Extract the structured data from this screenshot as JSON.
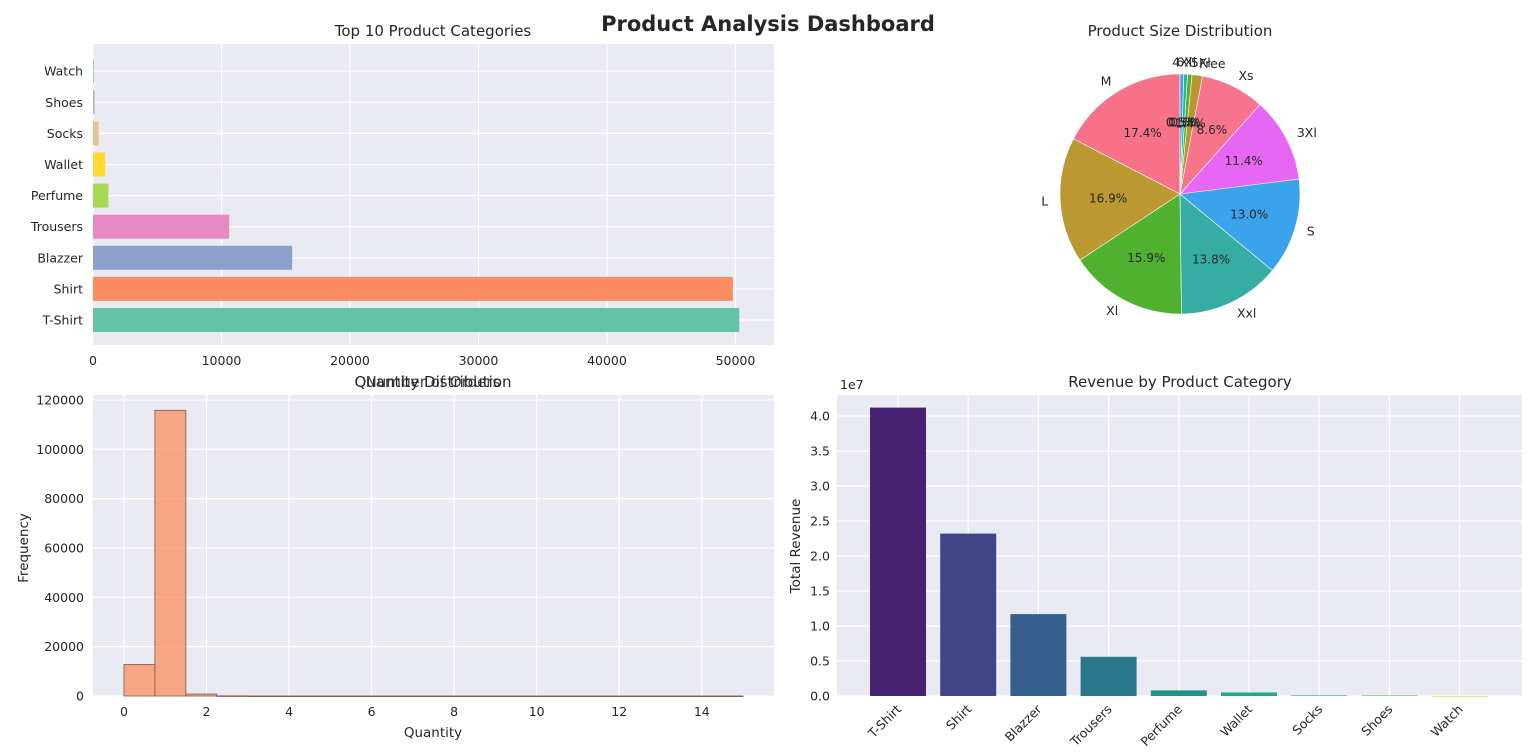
{
  "dashboard_title": "Product Analysis Dashboard",
  "chart_data": [
    {
      "type": "bar",
      "orientation": "horizontal",
      "title": "Top 10 Product Categories",
      "xlabel": "Number of Orders",
      "ylabel": "",
      "categories": [
        "T-Shirt",
        "Shirt",
        "Blazzer",
        "Trousers",
        "Perfume",
        "Wallet",
        "Socks",
        "Shoes",
        "Watch"
      ],
      "values": [
        50300,
        49800,
        15500,
        10600,
        1200,
        950,
        450,
        120,
        20
      ],
      "colors": [
        "#66c2a5",
        "#fc8d62",
        "#8da0cb",
        "#e78ac3",
        "#a6d854",
        "#ffd92f",
        "#e5c494",
        "#b3b3b3",
        "#66c2a5"
      ],
      "xlim": [
        0,
        53000
      ],
      "xticks": [
        "0",
        "10000",
        "20000",
        "30000",
        "40000",
        "50000"
      ],
      "grid": true
    },
    {
      "type": "pie",
      "title": "Product Size Distribution",
      "slices": [
        {
          "label": "M",
          "value": 17.4,
          "pct": "17.4%",
          "color": "#f77189"
        },
        {
          "label": "L",
          "value": 16.9,
          "pct": "16.9%",
          "color": "#bb9832"
        },
        {
          "label": "Xl",
          "value": 15.9,
          "pct": "15.9%",
          "color": "#50b131"
        },
        {
          "label": "Xxl",
          "value": 13.8,
          "pct": "13.8%",
          "color": "#36ada4"
        },
        {
          "label": "S",
          "value": 13.0,
          "pct": "13.0%",
          "color": "#3ba3ec"
        },
        {
          "label": "3Xl",
          "value": 11.4,
          "pct": "11.4%",
          "color": "#e866f4"
        },
        {
          "label": "Xs",
          "value": 8.6,
          "pct": "8.6%",
          "color": "#f7758c"
        },
        {
          "label": "Free",
          "value": 1.4,
          "pct": "1.4%",
          "color": "#b9962f"
        },
        {
          "label": "5Xl",
          "value": 0.6,
          "pct": "0.6%",
          "color": "#4eb32f"
        },
        {
          "label": "6Xl",
          "value": 0.5,
          "pct": "0.5%",
          "color": "#35ae9c"
        },
        {
          "label": "4Xl",
          "value": 0.5,
          "pct": "0.5%",
          "color": "#3aa5e8"
        }
      ]
    },
    {
      "type": "bar",
      "subtype": "histogram",
      "title": "Quantity Distribution",
      "xlabel": "Quantity",
      "ylabel": "Frequency",
      "bins": [
        {
          "start": 0.0,
          "end": 0.75,
          "count": 12800
        },
        {
          "start": 0.75,
          "end": 1.5,
          "count": 115800
        },
        {
          "start": 1.5,
          "end": 2.25,
          "count": 800
        },
        {
          "start": 2.25,
          "end": 3.0,
          "count": 60
        },
        {
          "start": 3.0,
          "end": 15.0,
          "count": 15
        }
      ],
      "xlim": [
        -0.75,
        15.75
      ],
      "ylim": [
        0,
        122000
      ],
      "xticks": [
        "0",
        "2",
        "4",
        "6",
        "8",
        "10",
        "12",
        "14"
      ],
      "yticks": [
        "0",
        "20000",
        "40000",
        "60000",
        "80000",
        "100000",
        "120000"
      ],
      "bar_color": "#fc8d62",
      "grid": true
    },
    {
      "type": "bar",
      "title": "Revenue by Product Category",
      "xlabel": "",
      "ylabel": "Total Revenue",
      "scale_label": "1e7",
      "categories": [
        "T-Shirt",
        "Shirt",
        "Blazzer",
        "Trousers",
        "Perfume",
        "Wallet",
        "Socks",
        "Shoes",
        "Watch"
      ],
      "values": [
        4.12,
        2.32,
        1.17,
        0.56,
        0.08,
        0.05,
        0.01,
        0.01,
        0.0
      ],
      "colors": [
        "#482172",
        "#414487",
        "#355f8d",
        "#2a788e",
        "#21918c",
        "#22a884",
        "#42be71",
        "#7ad151",
        "#bddf26"
      ],
      "ylim": [
        0,
        4.3
      ],
      "yticks": [
        "0.0",
        "0.5",
        "1.0",
        "1.5",
        "2.0",
        "2.5",
        "3.0",
        "3.5",
        "4.0"
      ],
      "grid": true
    }
  ]
}
